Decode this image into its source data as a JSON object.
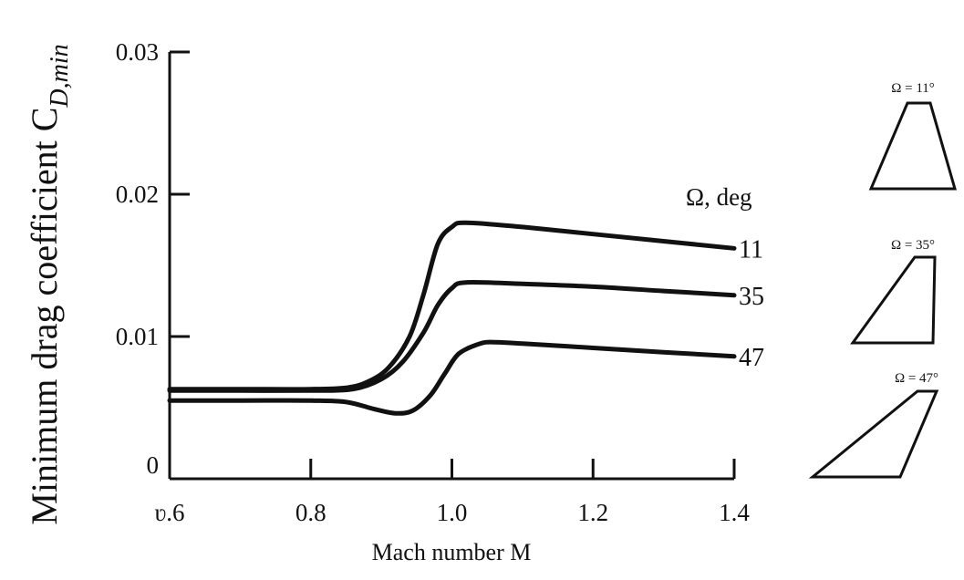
{
  "chart_data": {
    "type": "line",
    "xlabel": "Mach number M",
    "ylabel": "Minimum drag coefficient C",
    "ylabel_subscript": "D,min",
    "xlim": [
      0.6,
      1.4
    ],
    "ylim": [
      0,
      0.03
    ],
    "x_ticks": [
      0.6,
      0.8,
      1.0,
      1.2,
      1.4
    ],
    "x_tick_labels": [
      "ʋ.6",
      "0.8",
      "1.0",
      "1.2",
      "1.4"
    ],
    "y_ticks": [
      0,
      0.01,
      0.02,
      0.03
    ],
    "y_tick_labels": [
      "0",
      "0.01",
      "0.02",
      "0.03"
    ],
    "legend_title": "Ω, deg",
    "grid": false,
    "series": [
      {
        "name": "11",
        "x": [
          0.6,
          0.7,
          0.8,
          0.85,
          0.88,
          0.91,
          0.94,
          0.96,
          0.98,
          1.0,
          1.02,
          1.1,
          1.2,
          1.3,
          1.4
        ],
        "y": [
          0.0063,
          0.0063,
          0.0063,
          0.0064,
          0.0068,
          0.0078,
          0.01,
          0.013,
          0.0165,
          0.0177,
          0.018,
          0.0177,
          0.0172,
          0.0167,
          0.0162
        ]
      },
      {
        "name": "35",
        "x": [
          0.6,
          0.7,
          0.8,
          0.86,
          0.9,
          0.93,
          0.96,
          0.98,
          1.0,
          1.02,
          1.1,
          1.2,
          1.3,
          1.4
        ],
        "y": [
          0.0062,
          0.0062,
          0.0062,
          0.0063,
          0.007,
          0.0082,
          0.0103,
          0.0122,
          0.0134,
          0.0138,
          0.0137,
          0.0135,
          0.0132,
          0.0129
        ]
      },
      {
        "name": "47",
        "x": [
          0.6,
          0.7,
          0.8,
          0.85,
          0.89,
          0.92,
          0.945,
          0.97,
          0.99,
          1.01,
          1.04,
          1.06,
          1.1,
          1.2,
          1.3,
          1.4
        ],
        "y": [
          0.0055,
          0.0055,
          0.0055,
          0.0054,
          0.0049,
          0.0046,
          0.0048,
          0.0059,
          0.0074,
          0.0088,
          0.0095,
          0.0096,
          0.0095,
          0.0092,
          0.0089,
          0.0086
        ]
      }
    ]
  },
  "wings": [
    {
      "label": "Ω = 11°"
    },
    {
      "label": "Ω = 35°"
    },
    {
      "label": "Ω = 47°"
    }
  ]
}
